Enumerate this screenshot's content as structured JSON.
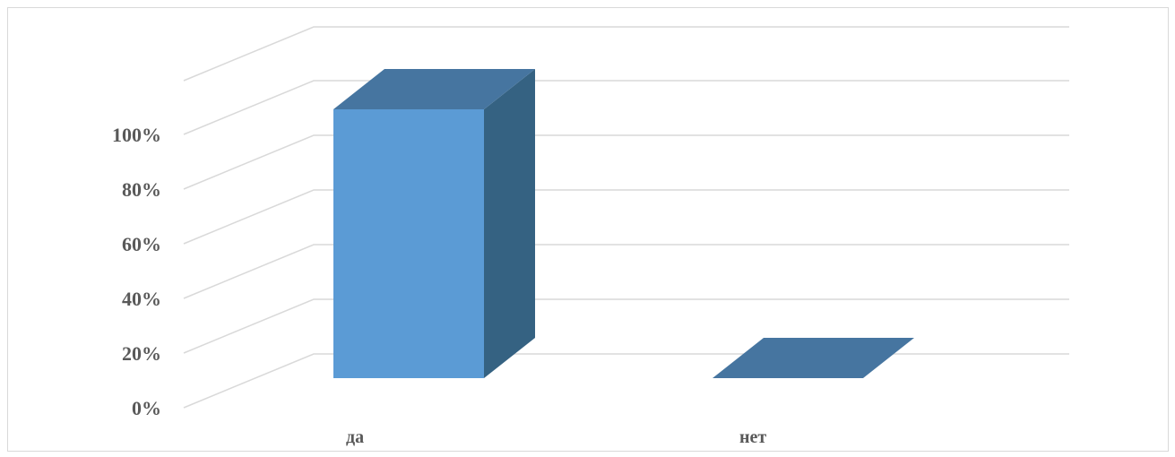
{
  "chart_data": {
    "type": "bar",
    "style": "3d-column",
    "categories": [
      "да",
      "нет"
    ],
    "values": [
      100,
      0
    ],
    "ylim": [
      0,
      100
    ],
    "y_ticks": [
      "0%",
      "20%",
      "40%",
      "60%",
      "80%",
      "100%"
    ],
    "grid": true,
    "legend": "none",
    "title": "",
    "xlabel": "",
    "ylabel": ""
  },
  "colors": {
    "bar_front": "#5b9bd5",
    "bar_top": "#4675a0",
    "bar_side": "#356282",
    "grid": "#d9d9d9",
    "axis_text": "#595959"
  }
}
